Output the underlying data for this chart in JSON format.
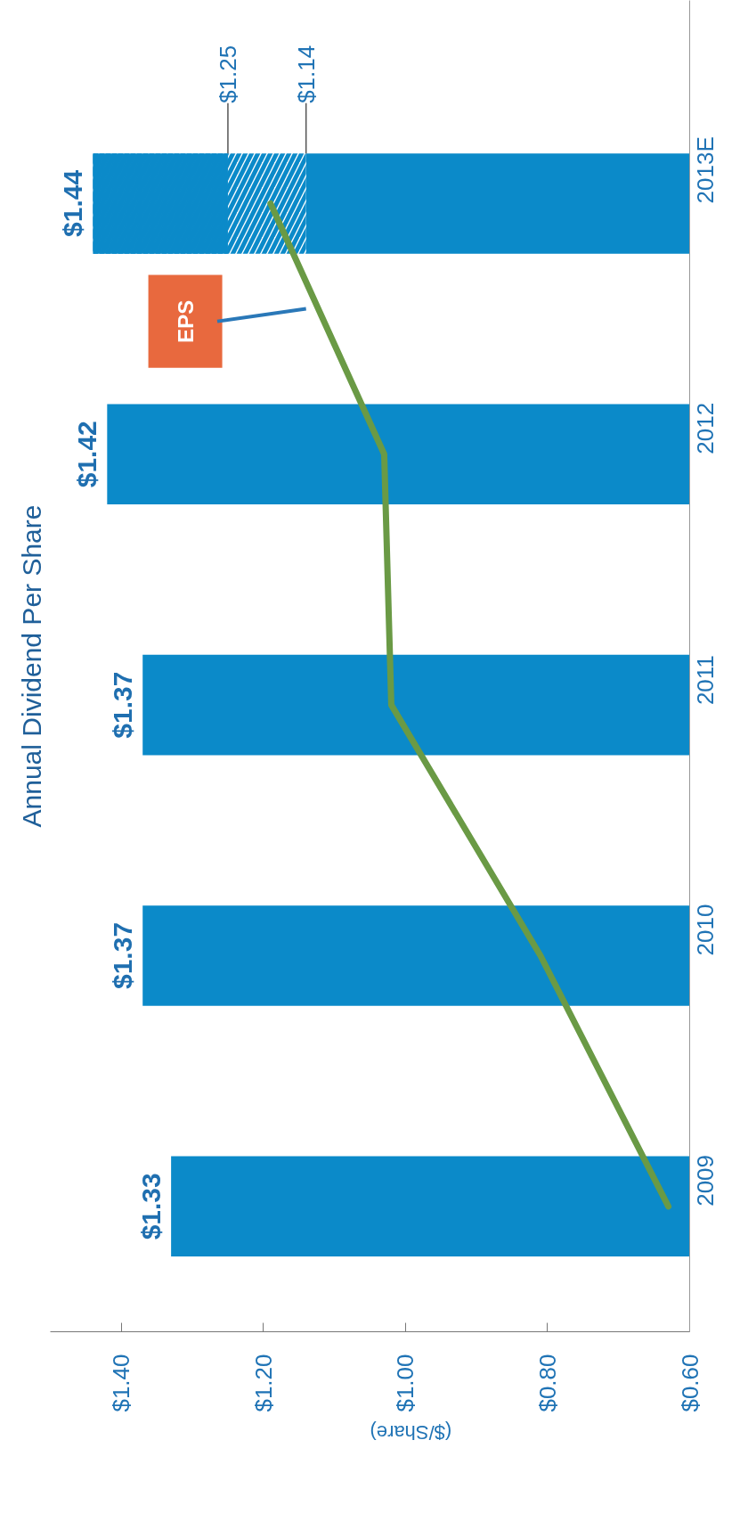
{
  "chart_data": {
    "type": "bar",
    "orientation": "horizontal",
    "title": "Annual Dividend Per Share",
    "xlabel": "($/Share)",
    "categories": [
      "2013E",
      "2012",
      "2011",
      "2010",
      "2009"
    ],
    "series": [
      {
        "color": "#0b8ac9",
        "values": [
          1.14,
          1.42,
          1.37,
          1.37,
          1.33
        ],
        "value_labels": [
          null,
          "$1.42",
          "$1.37",
          "$1.37",
          "$1.33"
        ]
      },
      {
        "color": "#ffffff",
        "base": [
          1.14,
          null,
          null,
          null,
          null
        ],
        "values": [
          0.11,
          null,
          null,
          null,
          null
        ]
      },
      {
        "color": "#0b8ac9",
        "base": [
          1.25,
          null,
          null,
          null,
          null
        ],
        "values": [
          0.19,
          null,
          null,
          null,
          null
        ],
        "value_labels": [
          "$1.44",
          null,
          null,
          null,
          null
        ]
      },
      {
        "type": "line",
        "color": "#6a9a45",
        "values": [
          1.19,
          1.03,
          1.02,
          0.81,
          0.63
        ]
      }
    ],
    "xlim": [
      1.5,
      0.6
    ],
    "xticks": [
      {
        "value": 1.4,
        "label": "$1.40"
      },
      {
        "value": 1.2,
        "label": "$1.20"
      },
      {
        "value": 1.0,
        "label": "$1.00"
      },
      {
        "value": 0.8,
        "label": "$0.80"
      },
      {
        "value": 0.6,
        "label": "$0.60"
      }
    ],
    "annotations": [
      {
        "text": "$1.25",
        "x": 1.25
      },
      {
        "text": "$1.14",
        "x": 1.14
      },
      "EPS"
    ],
    "grid": false
  }
}
